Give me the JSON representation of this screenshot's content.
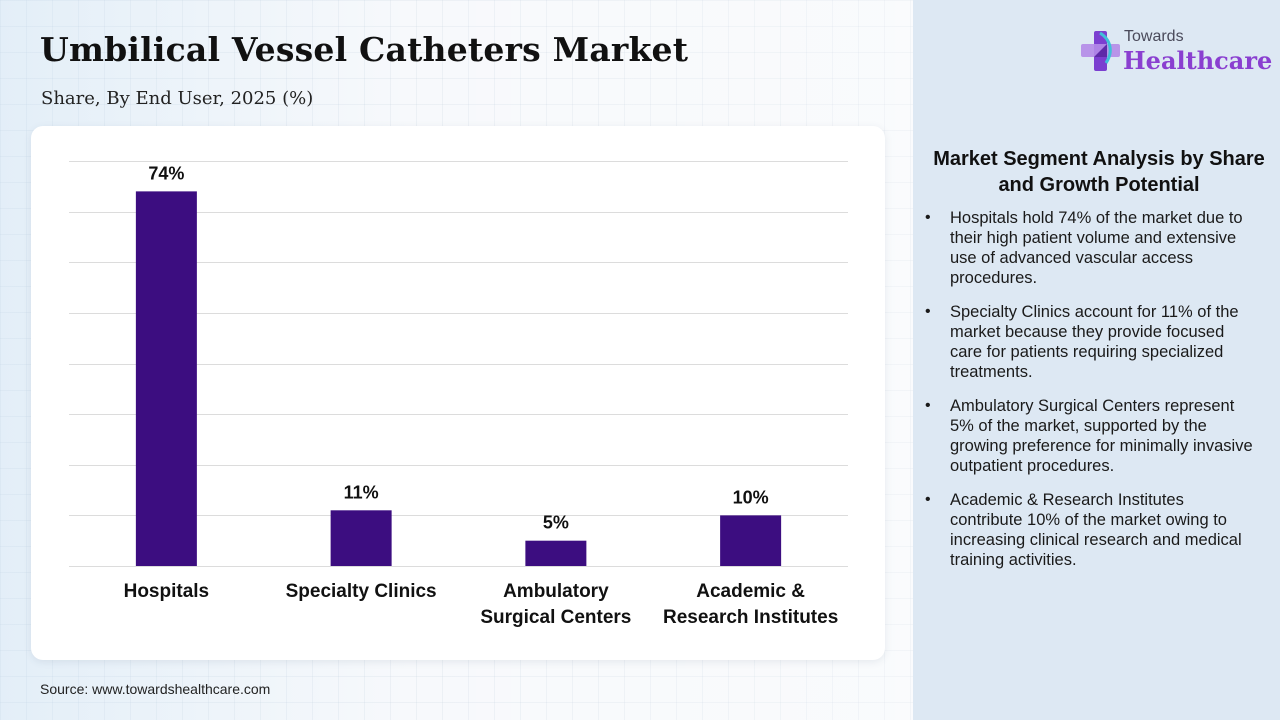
{
  "header": {
    "title": "Umbilical Vessel Catheters Market",
    "subtitle": "Share, By End User, 2025 (%)"
  },
  "logo": {
    "line1": "Towards",
    "line2": "Healthcare",
    "icon": "plus-cross-icon"
  },
  "chart_data": {
    "type": "bar",
    "categories": [
      "Hospitals",
      "Specialty Clinics",
      "Ambulatory Surgical Centers",
      "Academic & Research Institutes"
    ],
    "category_lines": [
      [
        "Hospitals"
      ],
      [
        "Specialty Clinics"
      ],
      [
        "Ambulatory",
        "Surgical Centers"
      ],
      [
        "Academic &",
        "Research Institutes"
      ]
    ],
    "values": [
      74,
      11,
      5,
      10
    ],
    "value_labels": [
      "74%",
      "11%",
      "5%",
      "10%"
    ],
    "ylim": [
      0,
      80
    ],
    "grid": true,
    "bar_color": "#3c0d80",
    "xlabel": "",
    "ylabel": ""
  },
  "analysis": {
    "title": "Market Segment Analysis by Share and Growth Potential",
    "bullets": [
      "Hospitals hold 74% of the market due to their high patient volume and extensive use of advanced vascular access procedures.",
      "Specialty Clinics account for 11% of the market because they provide focused care for patients requiring specialized treatments.",
      "Ambulatory Surgical Centers represent 5% of the market, supported by the growing preference for minimally invasive outpatient procedures.",
      "Academic & Research Institutes contribute 10% of the market owing to increasing clinical research and medical training activities."
    ]
  },
  "footer": {
    "source": "Source: www.towardshealthcare.com"
  }
}
